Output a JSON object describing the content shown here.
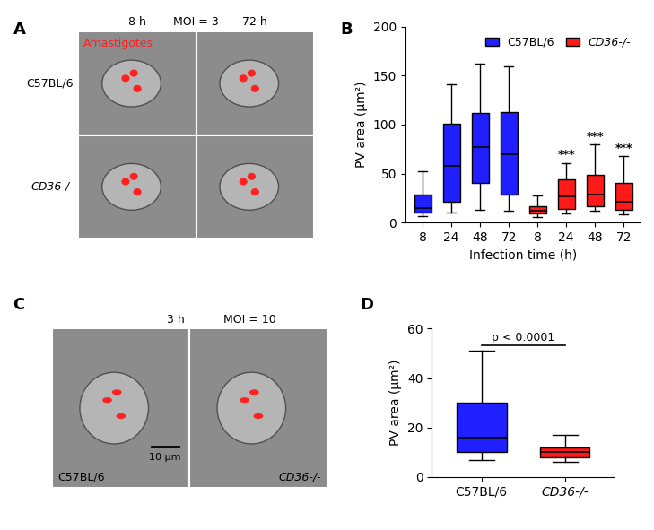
{
  "images": [
    {
      "panel_label": "A",
      "top_labels": [
        "8 h",
        "MOI = 3",
        "72 h"
      ],
      "legend_text": "Amastigotes",
      "row_labels": [
        "C57BL/6",
        "CD36-/-"
      ]
    },
    {
      "panel_label": "C",
      "top_labels": [
        "3 h",
        "MOI = 10"
      ],
      "sample_labels": [
        "C57BL/6",
        "CD36-/-"
      ],
      "scale_bar": "10 µm"
    }
  ],
  "chart_data": [
    {
      "type": "box",
      "panel_label": "B",
      "y_label": "PV area (µm²)",
      "x_label": "Infection time (h)",
      "categories": [
        "8",
        "24",
        "48",
        "72",
        "8",
        "24",
        "48",
        "72"
      ],
      "ylim": [
        0,
        200
      ],
      "yticks": [
        0,
        50,
        100,
        150,
        200
      ],
      "legend": "upper right",
      "annotations": [
        null,
        null,
        null,
        null,
        null,
        "***",
        "***",
        "***"
      ],
      "series": [
        {
          "name": "C57BL/6",
          "color": "#1f1fff",
          "values": [
            {
              "min": 7,
              "q1": 10,
              "median": 15,
              "q3": 29,
              "max": 52
            },
            {
              "min": 10,
              "q1": 21,
              "median": 58,
              "q3": 101,
              "max": 141
            },
            {
              "min": 13,
              "q1": 40,
              "median": 77,
              "q3": 112,
              "max": 162
            },
            {
              "min": 12,
              "q1": 29,
              "median": 70,
              "q3": 113,
              "max": 159
            },
            null,
            null,
            null,
            null
          ]
        },
        {
          "name": "CD36-/-",
          "color": "#ff1a1a",
          "values": [
            null,
            null,
            null,
            null,
            {
              "min": 6,
              "q1": 9,
              "median": 12,
              "q3": 17,
              "max": 28
            },
            {
              "min": 9,
              "q1": 14,
              "median": 27,
              "q3": 44,
              "max": 61
            },
            {
              "min": 12,
              "q1": 17,
              "median": 29,
              "q3": 49,
              "max": 80
            },
            {
              "min": 8,
              "q1": 13,
              "median": 21,
              "q3": 40,
              "max": 68
            }
          ]
        }
      ]
    },
    {
      "type": "box",
      "panel_label": "D",
      "y_label": "PV area (µm²)",
      "categories": [
        "C57BL/6",
        "CD36-/-"
      ],
      "colors": [
        "#1f1fff",
        "#ff1a1a"
      ],
      "ylim": [
        0,
        60
      ],
      "yticks": [
        0,
        20,
        40,
        60
      ],
      "bracket_text": "p < 0.0001",
      "values": [
        {
          "min": 7,
          "q1": 10,
          "median": 16,
          "q3": 30,
          "max": 51
        },
        {
          "min": 6,
          "q1": 8,
          "median": 10,
          "q3": 12,
          "max": 17
        }
      ]
    }
  ]
}
